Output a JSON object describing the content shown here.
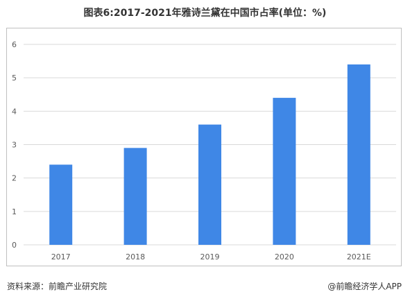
{
  "title": "图表6:2017-2021年雅诗兰黛在中国市占率(单位：%)",
  "source": "资料来源：前瞻产业研究院",
  "credit": "@前瞻经济学人APP",
  "colors": {
    "bar": "#3f87e6",
    "grid": "#d9d9d9",
    "axis_text": "#595959"
  },
  "chart_data": {
    "type": "bar",
    "categories": [
      "2017",
      "2018",
      "2019",
      "2020",
      "2021E"
    ],
    "values": [
      2.4,
      2.9,
      3.6,
      4.4,
      5.4
    ],
    "yticks": [
      0,
      1,
      2,
      3,
      4,
      5,
      6
    ],
    "ylim": [
      0,
      6
    ],
    "grid": true,
    "xlabel": "",
    "ylabel": ""
  }
}
